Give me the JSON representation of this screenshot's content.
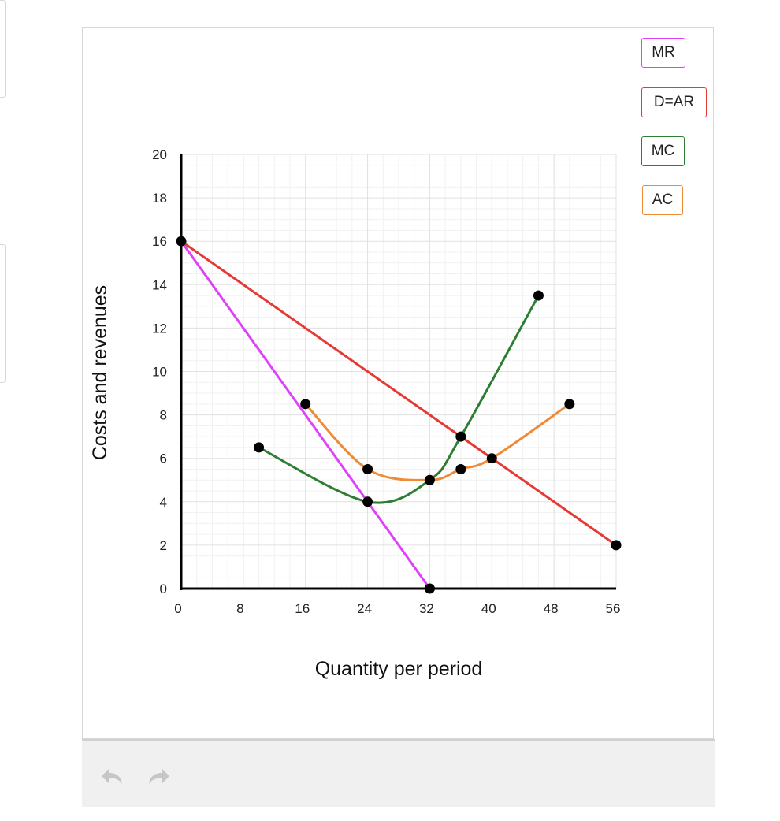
{
  "chart_data": {
    "type": "line",
    "xlabel": "Quantity per period",
    "ylabel": "Costs and revenues",
    "xlim": [
      0,
      56
    ],
    "ylim": [
      0,
      20
    ],
    "x_ticks": [
      "0",
      "8",
      "16",
      "24",
      "32",
      "40",
      "48",
      "56"
    ],
    "y_ticks": [
      "0",
      "2",
      "4",
      "6",
      "8",
      "10",
      "12",
      "14",
      "16",
      "18",
      "20"
    ],
    "grid": true,
    "legend_position": "top-right",
    "series": [
      {
        "name": "MR",
        "color": "#e040fb",
        "smooth": false,
        "points": [
          [
            0,
            16
          ],
          [
            32,
            0
          ]
        ]
      },
      {
        "name": "D=AR",
        "color": "#e53935",
        "smooth": false,
        "points": [
          [
            0,
            16
          ],
          [
            56,
            2
          ]
        ]
      },
      {
        "name": "MC",
        "color": "#2e7d32",
        "smooth": true,
        "points": [
          [
            10,
            6.5
          ],
          [
            24,
            4
          ],
          [
            32,
            5
          ],
          [
            36,
            7
          ],
          [
            46,
            13.5
          ]
        ]
      },
      {
        "name": "AC",
        "color": "#ef8a35",
        "smooth": true,
        "points": [
          [
            16,
            8.5
          ],
          [
            24,
            5.5
          ],
          [
            32,
            5
          ],
          [
            36,
            5.5
          ],
          [
            40,
            6
          ],
          [
            50,
            8.5
          ]
        ]
      }
    ],
    "markers": [
      [
        0,
        16
      ],
      [
        32,
        0
      ],
      [
        56,
        2
      ],
      [
        10,
        6.5
      ],
      [
        24,
        4
      ],
      [
        32,
        5
      ],
      [
        36,
        7
      ],
      [
        46,
        13.5
      ],
      [
        16,
        8.5
      ],
      [
        24,
        5.5
      ],
      [
        36,
        5.5
      ],
      [
        40,
        6
      ],
      [
        50,
        8.5
      ]
    ]
  },
  "legend": [
    {
      "label": "MR",
      "color": "#e040fb"
    },
    {
      "label": "D=AR",
      "color": "#e53935"
    },
    {
      "label": "MC",
      "color": "#2e7d32"
    },
    {
      "label": "AC",
      "color": "#ef8a35"
    }
  ],
  "toolbar": {
    "undo_icon": "undo-arrow-icon",
    "redo_icon": "redo-arrow-icon"
  }
}
